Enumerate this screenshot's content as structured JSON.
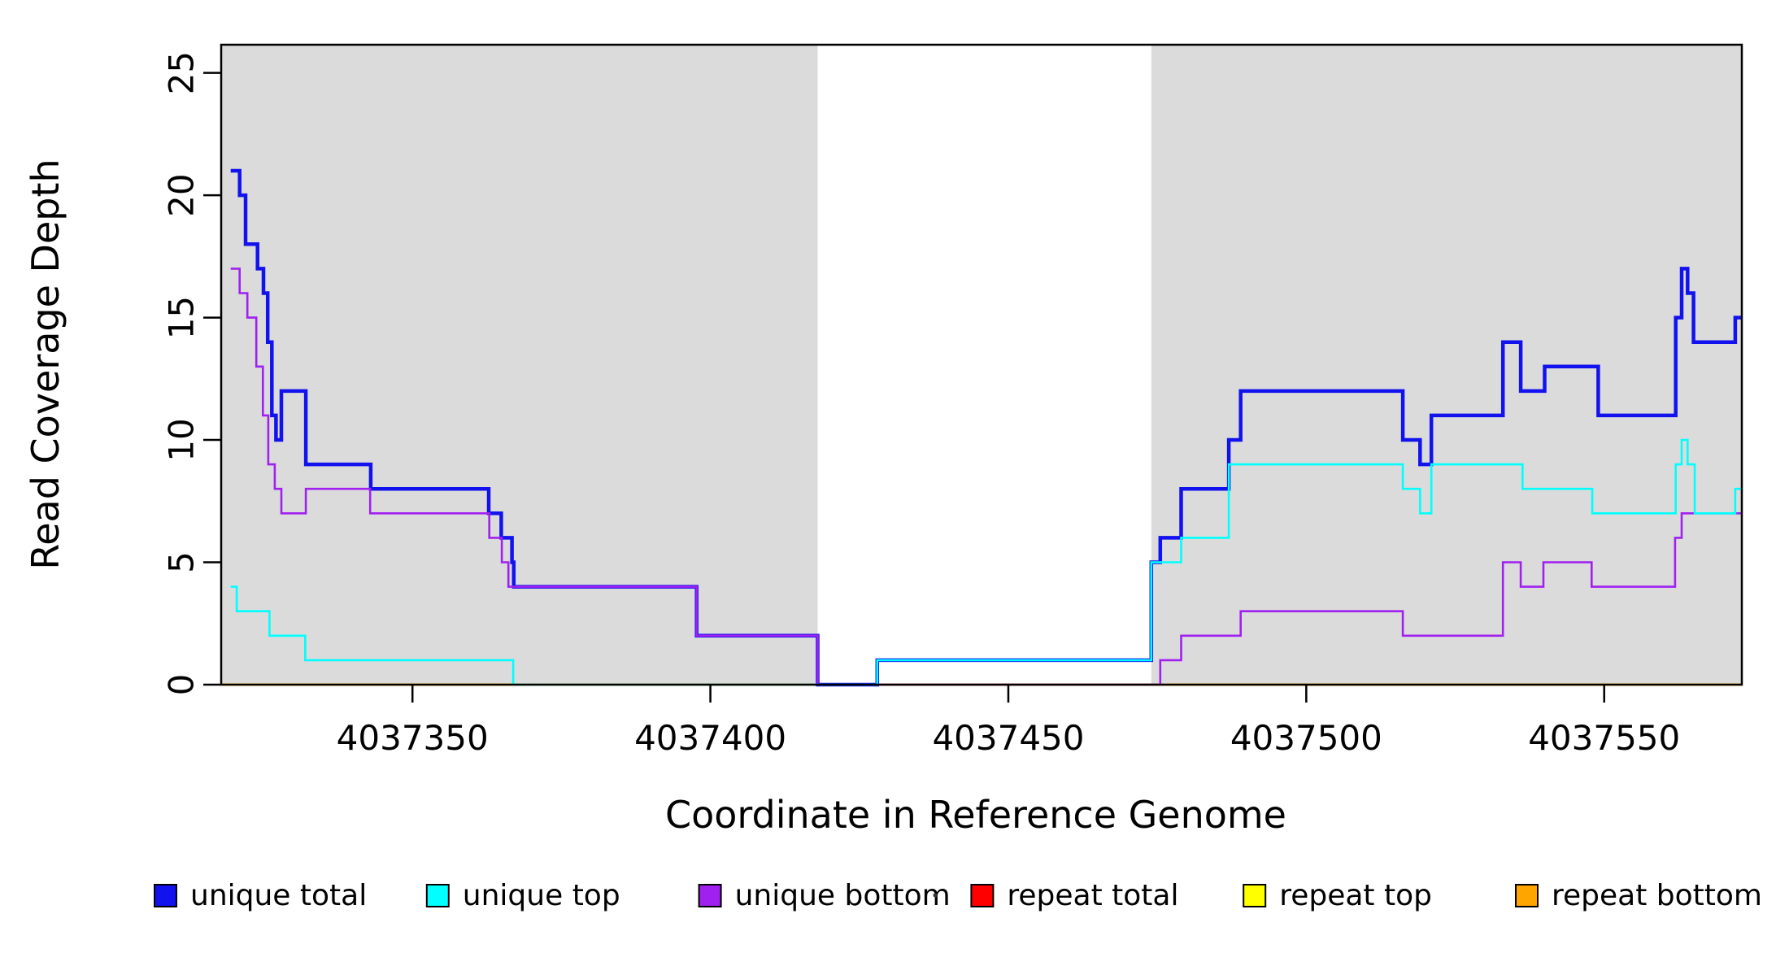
{
  "chart_data": {
    "type": "line",
    "subtype": "step-coverage-plot",
    "title": "",
    "xlabel": "Coordinate in Reference Genome",
    "ylabel": "Read Coverage Depth",
    "xlim": [
      4037317.9,
      4037573.1
    ],
    "ylim": [
      0,
      26.15
    ],
    "grid": false,
    "x_ticks": [
      4037350,
      4037400,
      4037450,
      4037500,
      4037550
    ],
    "y_ticks": [
      0,
      5,
      10,
      15,
      20,
      25
    ],
    "background_color": "#ffffff",
    "shaded_regions": [
      {
        "name": "annotated-region-left",
        "x0": 4037317.9,
        "x1": 4037418.0,
        "color": "#dbdbdb"
      },
      {
        "name": "annotated-region-right",
        "x0": 4037474.0,
        "x1": 4037573.1,
        "color": "#dbdbdb"
      }
    ],
    "series": [
      {
        "name": "repeat total",
        "color": "#FF0000",
        "width": 2.8,
        "steps": [
          [
            4037317.9,
            0
          ]
        ]
      },
      {
        "name": "repeat top",
        "color": "#FFFF00",
        "width": 2.8,
        "steps": [
          [
            4037317.9,
            0
          ]
        ]
      },
      {
        "name": "repeat bottom",
        "color": "#FFA500",
        "width": 2.8,
        "steps": [
          [
            4037317.9,
            0
          ]
        ]
      },
      {
        "name": "unique total",
        "color": "#1212EF",
        "width": 4.5,
        "steps": [
          [
            4037319.5,
            21
          ],
          [
            4037321,
            20
          ],
          [
            4037322,
            18
          ],
          [
            4037324,
            17
          ],
          [
            4037325,
            16
          ],
          [
            4037325.7,
            14
          ],
          [
            4037326.4,
            11
          ],
          [
            4037327.1,
            10
          ],
          [
            4037328,
            12
          ],
          [
            4037332.1,
            9
          ],
          [
            4037343,
            8
          ],
          [
            4037362.8,
            7
          ],
          [
            4037364.9,
            6
          ],
          [
            4037366.7,
            5
          ],
          [
            4037367,
            4
          ],
          [
            4037397.7,
            2
          ],
          [
            4037418,
            0
          ],
          [
            4037428,
            1
          ],
          [
            4037474,
            5
          ],
          [
            4037475.5,
            6
          ],
          [
            4037479,
            8
          ],
          [
            4037487,
            10
          ],
          [
            4037489,
            12
          ],
          [
            4037516.2,
            10
          ],
          [
            4037519.1,
            9
          ],
          [
            4037521,
            11
          ],
          [
            4037533,
            14
          ],
          [
            4037536,
            12
          ],
          [
            4037540,
            13
          ],
          [
            4037549,
            11
          ],
          [
            4037562,
            15
          ],
          [
            4037563,
            17
          ],
          [
            4037564,
            16
          ],
          [
            4037565,
            14
          ],
          [
            4037572,
            15
          ]
        ]
      },
      {
        "name": "unique bottom",
        "color": "#A020F0",
        "width": 2.6,
        "steps": [
          [
            4037319.5,
            17
          ],
          [
            4037321,
            16
          ],
          [
            4037322.3,
            15
          ],
          [
            4037323.8,
            13
          ],
          [
            4037324.9,
            11
          ],
          [
            4037325.8,
            9
          ],
          [
            4037326.9,
            8
          ],
          [
            4037328,
            7
          ],
          [
            4037332.1,
            8
          ],
          [
            4037342.9,
            7
          ],
          [
            4037362.9,
            6
          ],
          [
            4037365,
            5
          ],
          [
            4037366.1,
            4
          ],
          [
            4037397.7,
            2
          ],
          [
            4037418,
            0
          ],
          [
            4037475.5,
            1
          ],
          [
            4037479,
            2
          ],
          [
            4037489,
            3
          ],
          [
            4037516.2,
            2
          ],
          [
            4037533,
            5
          ],
          [
            4037536,
            4
          ],
          [
            4037539.8,
            5
          ],
          [
            4037547.9,
            4
          ],
          [
            4037561.9,
            6
          ],
          [
            4037563,
            7
          ]
        ]
      },
      {
        "name": "unique top",
        "color": "#00FFFF",
        "width": 2.6,
        "steps": [
          [
            4037319.5,
            4
          ],
          [
            4037320.5,
            3
          ],
          [
            4037326,
            2
          ],
          [
            4037332,
            1
          ],
          [
            4037366.9,
            0
          ],
          [
            4037428,
            1
          ],
          [
            4037474,
            5
          ],
          [
            4037479,
            6
          ],
          [
            4037487,
            9
          ],
          [
            4037516.2,
            8
          ],
          [
            4037519.1,
            7
          ],
          [
            4037521,
            9
          ],
          [
            4037536.3,
            8
          ],
          [
            4037548,
            7
          ],
          [
            4037562,
            9
          ],
          [
            4037563,
            10
          ],
          [
            4037564,
            9
          ],
          [
            4037565.2,
            7
          ],
          [
            4037572,
            8
          ]
        ]
      }
    ],
    "legend": {
      "position": "bottom",
      "entries": [
        {
          "label": "unique total",
          "color": "#1212EF"
        },
        {
          "label": "unique top",
          "color": "#00FFFF"
        },
        {
          "label": "unique bottom",
          "color": "#A020F0"
        },
        {
          "label": "repeat total",
          "color": "#FF0000"
        },
        {
          "label": "repeat top",
          "color": "#FFFF00"
        },
        {
          "label": "repeat bottom",
          "color": "#FFA500"
        }
      ],
      "stray_dot": true
    }
  }
}
